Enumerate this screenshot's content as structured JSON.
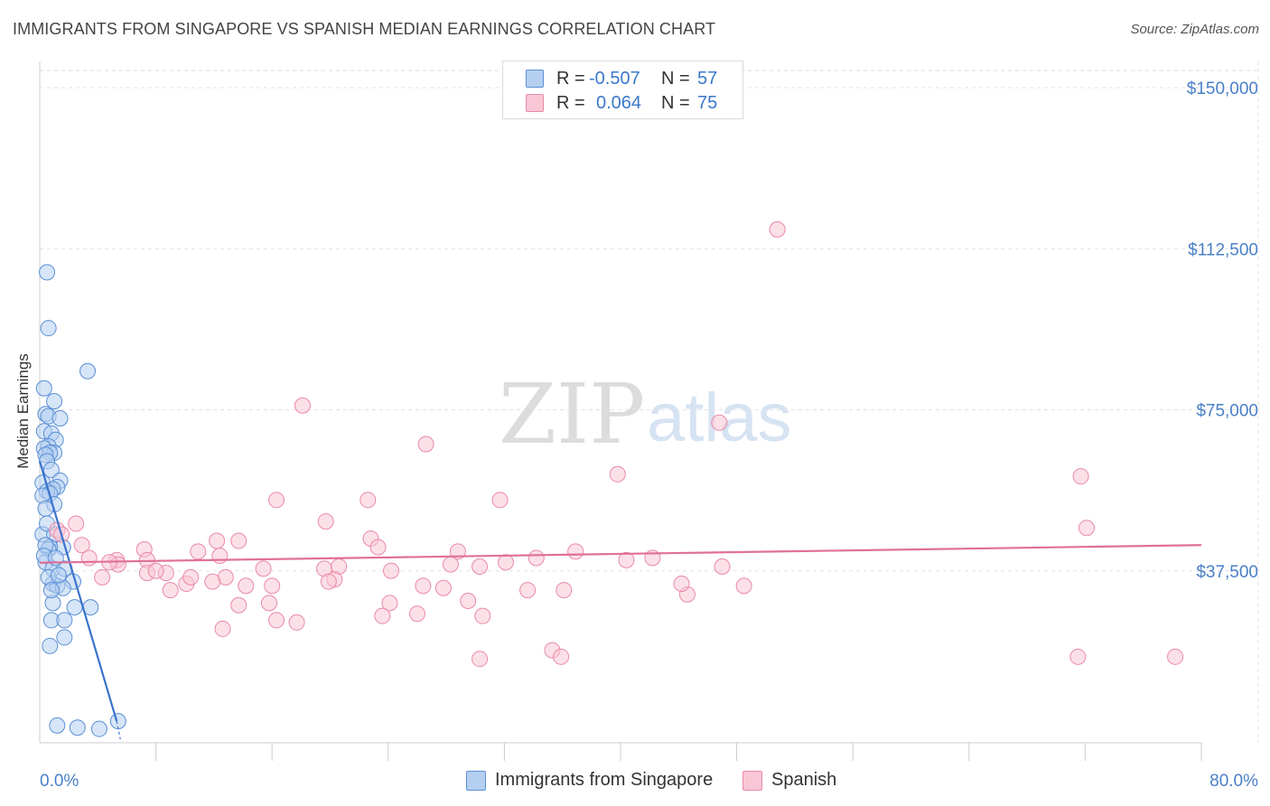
{
  "header": {
    "title": "IMMIGRANTS FROM SINGAPORE VS SPANISH MEDIAN EARNINGS CORRELATION CHART",
    "source": "Source: ZipAtlas.com"
  },
  "legend": {
    "rows": [
      {
        "r_label": "R =",
        "r_value": "-0.507",
        "n_label": "N =",
        "n_value": "57",
        "color": "#b5cff0",
        "border": "#5b8fd6"
      },
      {
        "r_label": "R =",
        "r_value": "0.064",
        "n_label": "N =",
        "n_value": "75",
        "color": "#f9c6d6",
        "border": "#e98aa8"
      }
    ]
  },
  "bottom_legend": {
    "items": [
      {
        "label": "Immigrants from Singapore",
        "color": "#b5cff0",
        "border": "#5b8fd6"
      },
      {
        "label": "Spanish",
        "color": "#f9c6d6",
        "border": "#e98aa8"
      }
    ]
  },
  "watermark": {
    "zip": "ZIP",
    "atlas": "atlas"
  },
  "chart_data": {
    "type": "scatter",
    "title": "IMMIGRANTS FROM SINGAPORE VS SPANISH MEDIAN EARNINGS CORRELATION CHART",
    "xlabel": "",
    "ylabel": "Median Earnings",
    "xlim": [
      0,
      80
    ],
    "ylim": [
      0,
      150000
    ],
    "x_tick_labels": [
      "0.0%",
      "80.0%"
    ],
    "y_ticks": [
      {
        "value": 37500,
        "label": "$37,500"
      },
      {
        "value": 75000,
        "label": "$75,000"
      },
      {
        "value": 112500,
        "label": "$112,500"
      },
      {
        "value": 150000,
        "label": "$150,000"
      }
    ],
    "grid": true,
    "series": [
      {
        "name": "Immigrants from Singapore",
        "color": "#5b8fd6",
        "fill": "#b5cff0",
        "trend": {
          "x": [
            0.0,
            5.3
          ],
          "y": [
            63000,
            2500
          ],
          "color": "#3a74cc"
        },
        "points": [
          [
            0.5,
            107000
          ],
          [
            0.6,
            94000
          ],
          [
            3.3,
            84000
          ],
          [
            0.3,
            80000
          ],
          [
            1.0,
            77000
          ],
          [
            0.4,
            74000
          ],
          [
            0.6,
            73500
          ],
          [
            1.4,
            73000
          ],
          [
            0.3,
            70000
          ],
          [
            0.8,
            69500
          ],
          [
            1.1,
            68000
          ],
          [
            0.6,
            66500
          ],
          [
            0.3,
            66000
          ],
          [
            1.0,
            65000
          ],
          [
            0.7,
            65000
          ],
          [
            0.4,
            64500
          ],
          [
            0.5,
            63000
          ],
          [
            0.8,
            61000
          ],
          [
            1.4,
            58500
          ],
          [
            0.2,
            58000
          ],
          [
            1.2,
            57000
          ],
          [
            0.9,
            56500
          ],
          [
            0.5,
            56000
          ],
          [
            0.7,
            55500
          ],
          [
            0.2,
            55000
          ],
          [
            1.0,
            53000
          ],
          [
            0.4,
            52000
          ],
          [
            0.2,
            46000
          ],
          [
            1.0,
            46000
          ],
          [
            1.6,
            43000
          ],
          [
            0.7,
            43000
          ],
          [
            0.6,
            42500
          ],
          [
            0.4,
            39500
          ],
          [
            0.9,
            38000
          ],
          [
            1.7,
            38000
          ],
          [
            2.3,
            35000
          ],
          [
            0.9,
            34500
          ],
          [
            1.2,
            34000
          ],
          [
            1.6,
            33500
          ],
          [
            0.6,
            36000
          ],
          [
            0.9,
            30000
          ],
          [
            3.5,
            29000
          ],
          [
            0.8,
            26000
          ],
          [
            1.7,
            26000
          ],
          [
            1.7,
            22000
          ],
          [
            0.7,
            20000
          ],
          [
            0.4,
            43500
          ],
          [
            1.3,
            36500
          ],
          [
            0.8,
            33000
          ],
          [
            2.4,
            29000
          ],
          [
            5.4,
            2500
          ],
          [
            1.2,
            1500
          ],
          [
            2.6,
            1000
          ],
          [
            4.1,
            700
          ],
          [
            0.3,
            41000
          ],
          [
            0.5,
            48500
          ],
          [
            1.1,
            40500
          ]
        ]
      },
      {
        "name": "Spanish",
        "color": "#e98aa8",
        "fill": "#f9c6d6",
        "trend": {
          "x": [
            0.0,
            80.0
          ],
          "y": [
            39400,
            43500
          ],
          "color": "#e0709a"
        },
        "points": [
          [
            50.8,
            117000
          ],
          [
            18.1,
            76000
          ],
          [
            46.8,
            72000
          ],
          [
            26.6,
            67000
          ],
          [
            39.8,
            60000
          ],
          [
            71.7,
            59500
          ],
          [
            16.3,
            54000
          ],
          [
            22.6,
            54000
          ],
          [
            31.7,
            54000
          ],
          [
            19.7,
            49000
          ],
          [
            2.5,
            48500
          ],
          [
            72.1,
            47500
          ],
          [
            1.2,
            47000
          ],
          [
            22.8,
            45000
          ],
          [
            12.2,
            44500
          ],
          [
            13.7,
            44500
          ],
          [
            2.9,
            43500
          ],
          [
            23.3,
            43000
          ],
          [
            7.2,
            42500
          ],
          [
            36.9,
            42000
          ],
          [
            10.9,
            42000
          ],
          [
            28.8,
            42000
          ],
          [
            12.4,
            41000
          ],
          [
            34.2,
            40500
          ],
          [
            3.4,
            40500
          ],
          [
            5.3,
            40000
          ],
          [
            7.4,
            40000
          ],
          [
            32.1,
            39500
          ],
          [
            5.4,
            39000
          ],
          [
            28.3,
            39000
          ],
          [
            30.3,
            38500
          ],
          [
            15.4,
            38000
          ],
          [
            24.2,
            37500
          ],
          [
            7.4,
            37000
          ],
          [
            8.7,
            37000
          ],
          [
            19.6,
            38000
          ],
          [
            20.6,
            38500
          ],
          [
            47.0,
            38500
          ],
          [
            12.8,
            36000
          ],
          [
            4.3,
            36000
          ],
          [
            20.3,
            35500
          ],
          [
            26.4,
            34000
          ],
          [
            11.9,
            35000
          ],
          [
            10.1,
            34500
          ],
          [
            16.0,
            34000
          ],
          [
            19.9,
            35000
          ],
          [
            9.0,
            33000
          ],
          [
            14.2,
            34000
          ],
          [
            27.8,
            33500
          ],
          [
            40.4,
            40000
          ],
          [
            42.2,
            40500
          ],
          [
            48.5,
            34000
          ],
          [
            44.6,
            32000
          ],
          [
            15.8,
            30000
          ],
          [
            13.7,
            29500
          ],
          [
            24.1,
            30000
          ],
          [
            29.5,
            30500
          ],
          [
            23.6,
            27000
          ],
          [
            30.5,
            27000
          ],
          [
            16.3,
            26000
          ],
          [
            17.7,
            25500
          ],
          [
            12.6,
            24000
          ],
          [
            26.0,
            27500
          ],
          [
            33.6,
            33000
          ],
          [
            36.1,
            33000
          ],
          [
            44.2,
            34500
          ],
          [
            35.3,
            19000
          ],
          [
            35.9,
            17500
          ],
          [
            30.3,
            17000
          ],
          [
            71.5,
            17500
          ],
          [
            78.2,
            17500
          ],
          [
            1.5,
            46000
          ],
          [
            4.8,
            39500
          ],
          [
            10.4,
            36000
          ],
          [
            8.0,
            37500
          ]
        ]
      }
    ]
  }
}
